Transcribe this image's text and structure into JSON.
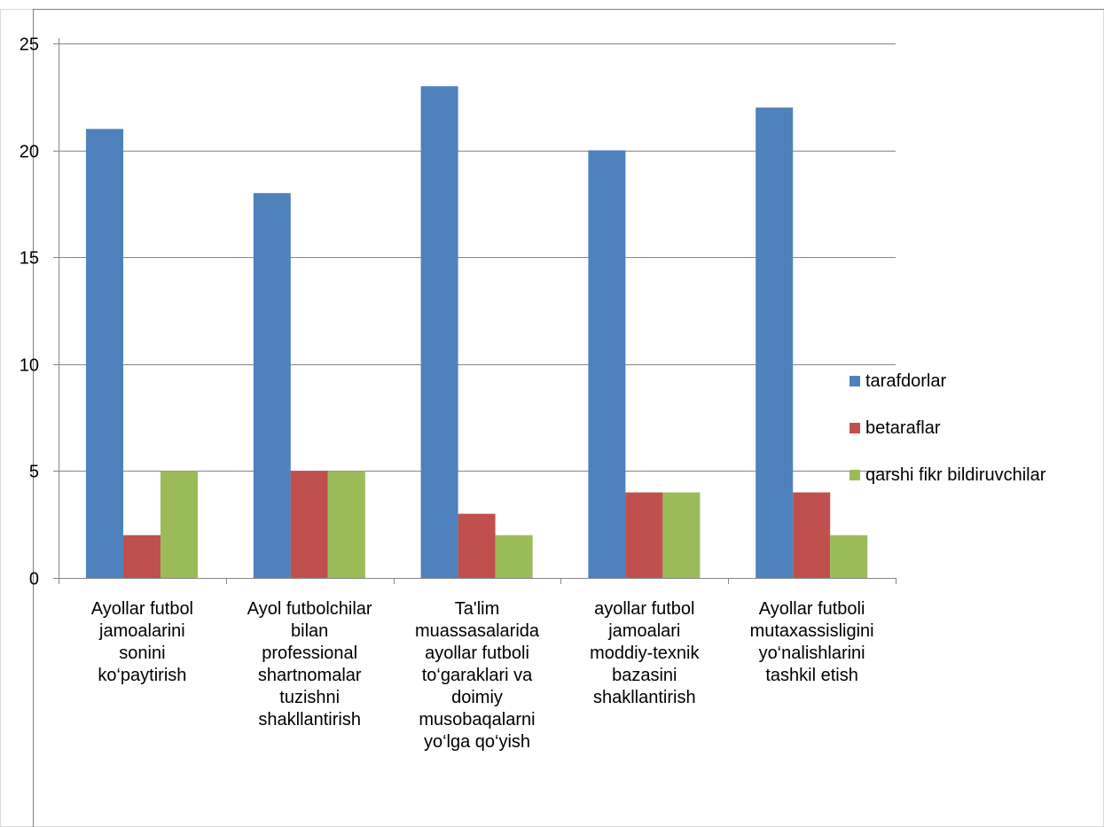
{
  "chart_data": {
    "type": "bar",
    "categories": [
      "Ayollar futbol jamoalarini sonini ko‘paytirish",
      "Ayol futbolchilar bilan professional shartnomalar tuzishni shakllantirish",
      "Ta'lim muassasalarida ayollar futboli to‘garaklari va doimiy musobaqalarni yo‘lga qo‘yish",
      "ayollar futbol jamoalari moddiy-texnik bazasini shakllantirish",
      "Ayollar futboli mutaxassisligini yo‘nalishlarini tashkil etish"
    ],
    "category_lines": [
      [
        "Ayollar futbol",
        "jamoalarini",
        "sonini",
        "ko‘paytirish"
      ],
      [
        "Ayol futbolchilar",
        "bilan",
        "professional",
        "shartnomalar",
        "tuzishni",
        "shakllantirish"
      ],
      [
        "Ta'lim",
        "muassasalarida",
        "ayollar futboli",
        "to‘garaklari va",
        "doimiy",
        "musobaqalarni",
        "yo‘lga qo‘yish"
      ],
      [
        "ayollar futbol",
        "jamoalari",
        "moddiy-texnik",
        "bazasini",
        "shakllantirish"
      ],
      [
        "Ayollar futboli",
        "mutaxassisligini",
        "yo‘nalishlarini",
        "tashkil etish"
      ]
    ],
    "series": [
      {
        "name": "tarafdorlar",
        "color": "#4F81BD",
        "values": [
          21,
          18,
          23,
          20,
          22
        ]
      },
      {
        "name": "betaraflar",
        "color": "#C0504D",
        "values": [
          2,
          5,
          3,
          4,
          4
        ]
      },
      {
        "name": "qarshi fikr bildiruvchilar",
        "color": "#9BBB59",
        "values": [
          5,
          5,
          2,
          4,
          2
        ]
      }
    ],
    "ylim": [
      0,
      25
    ],
    "yticks": [
      0,
      5,
      10,
      15,
      20,
      25
    ],
    "grid": true,
    "legend": "right",
    "title": "",
    "xlabel": "",
    "ylabel": ""
  }
}
